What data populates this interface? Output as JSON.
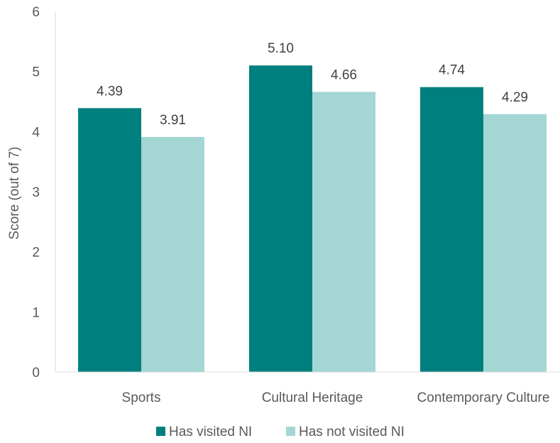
{
  "chart_data": {
    "type": "bar",
    "title": "",
    "xlabel": "",
    "ylabel": "Score (out of 7)",
    "ylim": [
      0,
      6
    ],
    "yticks": [
      0,
      1,
      2,
      3,
      4,
      5,
      6
    ],
    "grid": false,
    "legend_position": "bottom",
    "categories": [
      "Sports",
      "Cultural Heritage",
      "Contemporary Culture"
    ],
    "series": [
      {
        "name": "Has visited NI",
        "color": "#007F7F",
        "values": [
          4.39,
          5.1,
          4.74
        ],
        "labels": [
          "4.39",
          "5.10",
          "4.74"
        ]
      },
      {
        "name": "Has not visited NI",
        "color": "#A4D6D4",
        "values": [
          3.91,
          4.66,
          4.29
        ],
        "labels": [
          "3.91",
          "4.66",
          "4.29"
        ]
      }
    ]
  }
}
